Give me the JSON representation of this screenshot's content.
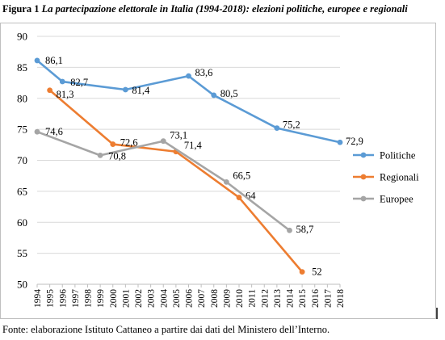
{
  "caption": {
    "number": "Figura 1",
    "title": "La partecipazione elettorale in Italia (1994-2018): elezioni politiche, europee e regionali"
  },
  "source": "Fonte: elaborazione Istituto Cattaneo a partire dai dati del Ministero dell’Interno.",
  "chart_data": {
    "type": "line",
    "title": "",
    "xlabel": "",
    "ylabel": "",
    "ylim": [
      50,
      90
    ],
    "yticks": [
      50,
      55,
      60,
      65,
      70,
      75,
      80,
      85,
      90
    ],
    "xlim": [
      1994,
      2018
    ],
    "categories": [
      "1994",
      "1995",
      "1996",
      "1997",
      "1998",
      "1999",
      "2000",
      "2001",
      "2002",
      "2003",
      "2004",
      "2005",
      "2006",
      "2007",
      "2008",
      "2009",
      "2010",
      "2011",
      "2012",
      "2013",
      "2014",
      "2015",
      "2016",
      "2017",
      "2018"
    ],
    "grid": "horizontal",
    "legend_position": "right",
    "series": [
      {
        "name": "Politiche",
        "color": "#5b9bd5",
        "points": [
          {
            "x": 1994,
            "y": 86.1,
            "label": "86,1"
          },
          {
            "x": 1996,
            "y": 82.7,
            "label": "82,7"
          },
          {
            "x": 2001,
            "y": 81.4,
            "label": "81,4"
          },
          {
            "x": 2006,
            "y": 83.6,
            "label": "83,6"
          },
          {
            "x": 2008,
            "y": 80.5,
            "label": "80,5"
          },
          {
            "x": 2013,
            "y": 75.2,
            "label": "75,2"
          },
          {
            "x": 2018,
            "y": 72.9,
            "label": "72,9"
          }
        ]
      },
      {
        "name": "Regionali",
        "color": "#ed7d31",
        "points": [
          {
            "x": 1995,
            "y": 81.3,
            "label": "81,3"
          },
          {
            "x": 2000,
            "y": 72.6,
            "label": "72,6"
          },
          {
            "x": 2005,
            "y": 71.4,
            "label": "71,4"
          },
          {
            "x": 2010,
            "y": 64.0,
            "label": "64"
          },
          {
            "x": 2015,
            "y": 52.0,
            "label": "52"
          }
        ]
      },
      {
        "name": "Europee",
        "color": "#a5a5a5",
        "points": [
          {
            "x": 1994,
            "y": 74.6,
            "label": "74,6"
          },
          {
            "x": 1999,
            "y": 70.8,
            "label": "70,8"
          },
          {
            "x": 2004,
            "y": 73.1,
            "label": "73,1"
          },
          {
            "x": 2009,
            "y": 66.5,
            "label": "66,5"
          },
          {
            "x": 2014,
            "y": 58.7,
            "label": "58,7"
          }
        ]
      }
    ]
  }
}
